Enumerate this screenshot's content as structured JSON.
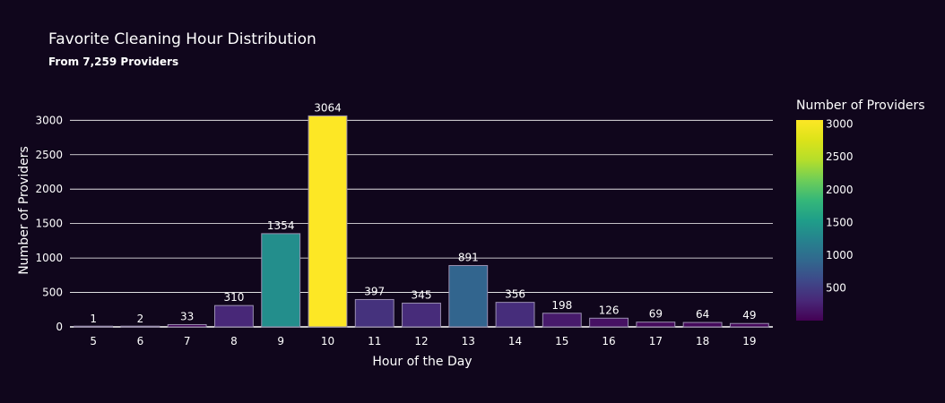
{
  "chart_data": {
    "type": "bar",
    "title": "Favorite Cleaning Hour Distribution",
    "subtitle": "From 7,259 Providers",
    "xlabel": "Hour of the Day",
    "ylabel": "Number of Providers",
    "categories": [
      "5",
      "6",
      "7",
      "8",
      "9",
      "10",
      "11",
      "12",
      "13",
      "14",
      "15",
      "16",
      "17",
      "18",
      "19"
    ],
    "values": [
      1,
      2,
      33,
      310,
      1354,
      3064,
      397,
      345,
      891,
      356,
      198,
      126,
      69,
      64,
      49
    ],
    "data_labels": [
      "1",
      "2",
      "33",
      "310",
      "1354",
      "3064",
      "397",
      "345",
      "891",
      "356",
      "198",
      "126",
      "69",
      "64",
      "49"
    ],
    "ylim": [
      0,
      3225
    ],
    "yticks": [
      0,
      500,
      1000,
      1500,
      2000,
      2500,
      3000
    ],
    "grid": true,
    "colorscale": "viridis",
    "colorbar": {
      "title": "Number of Providers",
      "range": [
        1,
        3064
      ],
      "ticks": [
        500,
        1000,
        1500,
        2000,
        2500,
        3000
      ]
    },
    "colors": {
      "background": "#10061c",
      "grid": "#ffffff",
      "text": "#ffffff",
      "bar_outline": "#9a8fb0"
    }
  }
}
